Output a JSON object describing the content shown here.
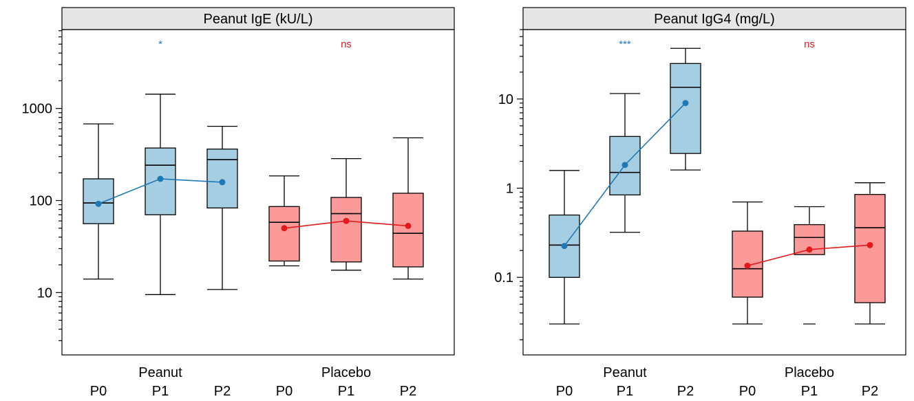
{
  "colors": {
    "peanut_fill": "#a6cee3",
    "peanut_line": "#1f78b4",
    "placebo_fill": "#fb9a99",
    "placebo_line": "#e31a1c",
    "strip": "#e6e6e6",
    "ink": "#000000"
  },
  "chart_data": [
    {
      "type": "box",
      "title": "Peanut IgE (kU/L)",
      "yscale": "log",
      "ylim": [
        2.1,
        7200
      ],
      "yticks": [
        10,
        100,
        1000
      ],
      "ytick_labels": [
        "10",
        "100",
        "1000"
      ],
      "grid": false,
      "groups": [
        {
          "name": "Peanut",
          "significance": "*",
          "timepoints": [
            "P0",
            "P1",
            "P2"
          ],
          "boxes": [
            {
              "low": 14,
              "q1": 56,
              "median": 94,
              "q3": 172,
              "high": 680
            },
            {
              "low": 9.5,
              "q1": 70,
              "median": 242,
              "q3": 372,
              "high": 1430
            },
            {
              "low": 10.8,
              "q1": 83,
              "median": 278,
              "q3": 362,
              "high": 640
            }
          ],
          "means": [
            92,
            172,
            158
          ]
        },
        {
          "name": "Placebo",
          "significance": "ns",
          "timepoints": [
            "P0",
            "P1",
            "P2"
          ],
          "boxes": [
            {
              "low": 19.5,
              "q1": 22,
              "median": 58,
              "q3": 86,
              "high": 185
            },
            {
              "low": 17.5,
              "q1": 21.5,
              "median": 72,
              "q3": 108,
              "high": 285
            },
            {
              "low": 14,
              "q1": 19,
              "median": 44,
              "q3": 120,
              "high": 480
            }
          ],
          "means": [
            50,
            60,
            53
          ]
        }
      ]
    },
    {
      "type": "box",
      "title": "Peanut IgG4 (mg/L)",
      "yscale": "log",
      "ylim": [
        0.0135,
        60
      ],
      "yticks": [
        0.1,
        1,
        10
      ],
      "ytick_labels": [
        "0.1",
        "1",
        "10"
      ],
      "grid": false,
      "groups": [
        {
          "name": "Peanut",
          "significance": "***",
          "timepoints": [
            "P0",
            "P1",
            "P2"
          ],
          "boxes": [
            {
              "low": 0.03,
              "q1": 0.1,
              "median": 0.23,
              "q3": 0.5,
              "high": 1.58
            },
            {
              "low": 0.32,
              "q1": 0.84,
              "median": 1.5,
              "q3": 3.8,
              "high": 11.5
            },
            {
              "low": 1.6,
              "q1": 2.45,
              "median": 13.5,
              "q3": 25,
              "high": 37
            }
          ],
          "means": [
            0.225,
            1.82,
            9.0
          ]
        },
        {
          "name": "Placebo",
          "significance": "ns",
          "timepoints": [
            "P0",
            "P1",
            "P2"
          ],
          "boxes": [
            {
              "low": 0.03,
              "q1": 0.06,
              "median": 0.125,
              "q3": 0.33,
              "high": 0.7
            },
            {
              "low": 0.03,
              "q1": 0.18,
              "median": 0.28,
              "q3": 0.39,
              "high": 0.62,
              "low_detached": true
            },
            {
              "low": 0.03,
              "q1": 0.052,
              "median": 0.36,
              "q3": 0.85,
              "high": 1.15
            }
          ],
          "means": [
            0.135,
            0.205,
            0.23
          ]
        }
      ]
    }
  ]
}
